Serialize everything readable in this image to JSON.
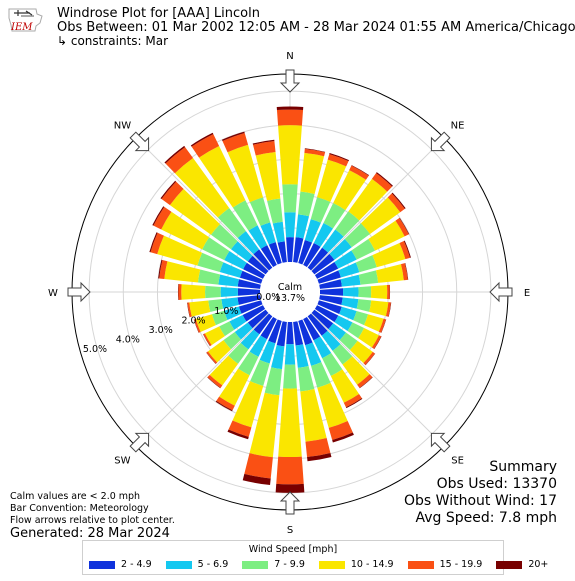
{
  "header": {
    "title_line1": "Windrose Plot for [AAA] Lincoln",
    "title_line2": "Obs Between: 01 Mar 2002 12:05 AM - 28 Mar 2024 01:55 AM America/Chicago",
    "title_line3": "↳ constraints: Mar",
    "logo_text": "IEM"
  },
  "calm": {
    "label": "Calm",
    "value": "13.7%"
  },
  "summary": {
    "heading": "Summary",
    "obs_used": "Obs Used: 13370",
    "obs_without_wind": "Obs Without Wind: 17",
    "avg_speed": "Avg Speed: 7.8 mph"
  },
  "notes": {
    "line1": "Calm values are < 2.0 mph",
    "line2": "Bar Convention: Meteorology",
    "line3": "Flow arrows relative to plot center."
  },
  "generated": "Generated: 28 Mar 2024",
  "legend": {
    "title": "Wind Speed [mph]",
    "items": [
      {
        "label": "2 - 4.9",
        "color": "#0f32dc"
      },
      {
        "label": "5 - 6.9",
        "color": "#14c8f0"
      },
      {
        "label": "7 - 9.9",
        "color": "#7dee82"
      },
      {
        "label": "10 - 14.9",
        "color": "#fae600"
      },
      {
        "label": "15 - 19.9",
        "color": "#fa5014"
      },
      {
        "label": "20+",
        "color": "#780000"
      }
    ]
  },
  "chart_data": {
    "type": "windrose",
    "convention": "meteorology",
    "directions_deg": [
      0,
      10,
      20,
      30,
      40,
      50,
      60,
      70,
      80,
      90,
      100,
      110,
      120,
      130,
      140,
      150,
      160,
      170,
      180,
      190,
      200,
      210,
      220,
      230,
      240,
      250,
      260,
      270,
      280,
      290,
      300,
      310,
      320,
      330,
      340,
      350
    ],
    "compass_labels": [
      "N",
      "NE",
      "E",
      "SE",
      "S",
      "SW",
      "W",
      "NW"
    ],
    "radial_ticks": [
      "0.0%",
      "1.0%",
      "2.0%",
      "3.0%",
      "4.0%",
      "5.0%"
    ],
    "radial_max": 5.5,
    "calm_percent": 13.7,
    "bins": [
      "2 - 4.9",
      "5 - 6.9",
      "7 - 9.9",
      "10 - 14.9",
      "15 - 19.9",
      "20+"
    ],
    "totals": [
      4.55,
      3.35,
      3.35,
      3.25,
      3.45,
      3.3,
      3.0,
      2.8,
      2.6,
      2.05,
      2.1,
      2.05,
      2.1,
      2.2,
      2.6,
      2.9,
      3.7,
      4.1,
      5.0,
      4.8,
      3.6,
      3.0,
      2.6,
      2.15,
      1.95,
      2.05,
      2.15,
      2.4,
      3.0,
      3.4,
      3.6,
      3.8,
      4.4,
      4.3,
      4.0,
      3.6
    ],
    "shares": [
      [
        0.16,
        0.16,
        0.18,
        0.38,
        0.1,
        0.02
      ],
      [
        0.22,
        0.2,
        0.2,
        0.34,
        0.035,
        0.005
      ],
      [
        0.21,
        0.19,
        0.2,
        0.34,
        0.05,
        0.01
      ],
      [
        0.22,
        0.2,
        0.2,
        0.33,
        0.045,
        0.005
      ],
      [
        0.21,
        0.19,
        0.19,
        0.34,
        0.06,
        0.01
      ],
      [
        0.22,
        0.19,
        0.2,
        0.33,
        0.05,
        0.01
      ],
      [
        0.23,
        0.2,
        0.2,
        0.32,
        0.045,
        0.005
      ],
      [
        0.24,
        0.2,
        0.19,
        0.31,
        0.05,
        0.01
      ],
      [
        0.25,
        0.21,
        0.2,
        0.29,
        0.045,
        0.005
      ],
      [
        0.33,
        0.22,
        0.18,
        0.23,
        0.035,
        0.005
      ],
      [
        0.32,
        0.22,
        0.18,
        0.24,
        0.035,
        0.005
      ],
      [
        0.34,
        0.22,
        0.17,
        0.23,
        0.035,
        0.005
      ],
      [
        0.33,
        0.22,
        0.18,
        0.23,
        0.035,
        0.005
      ],
      [
        0.31,
        0.21,
        0.19,
        0.25,
        0.035,
        0.005
      ],
      [
        0.27,
        0.21,
        0.19,
        0.28,
        0.045,
        0.005
      ],
      [
        0.24,
        0.2,
        0.2,
        0.3,
        0.05,
        0.01
      ],
      [
        0.2,
        0.17,
        0.18,
        0.33,
        0.1,
        0.02
      ],
      [
        0.17,
        0.16,
        0.17,
        0.36,
        0.11,
        0.03
      ],
      [
        0.13,
        0.12,
        0.14,
        0.4,
        0.16,
        0.05
      ],
      [
        0.15,
        0.14,
        0.16,
        0.38,
        0.13,
        0.04
      ],
      [
        0.19,
        0.17,
        0.19,
        0.35,
        0.08,
        0.02
      ],
      [
        0.22,
        0.19,
        0.2,
        0.33,
        0.05,
        0.01
      ],
      [
        0.25,
        0.21,
        0.2,
        0.3,
        0.035,
        0.005
      ],
      [
        0.3,
        0.22,
        0.19,
        0.26,
        0.025,
        0.005
      ],
      [
        0.34,
        0.22,
        0.17,
        0.24,
        0.025,
        0.005
      ],
      [
        0.33,
        0.22,
        0.18,
        0.24,
        0.025,
        0.005
      ],
      [
        0.31,
        0.22,
        0.18,
        0.26,
        0.025,
        0.005
      ],
      [
        0.27,
        0.21,
        0.19,
        0.29,
        0.035,
        0.005
      ],
      [
        0.22,
        0.19,
        0.2,
        0.33,
        0.05,
        0.01
      ],
      [
        0.19,
        0.18,
        0.2,
        0.36,
        0.06,
        0.01
      ],
      [
        0.18,
        0.17,
        0.2,
        0.37,
        0.07,
        0.01
      ],
      [
        0.17,
        0.16,
        0.19,
        0.39,
        0.08,
        0.01
      ],
      [
        0.15,
        0.15,
        0.19,
        0.41,
        0.09,
        0.01
      ],
      [
        0.15,
        0.15,
        0.19,
        0.41,
        0.09,
        0.01
      ],
      [
        0.16,
        0.15,
        0.19,
        0.4,
        0.09,
        0.01
      ],
      [
        0.17,
        0.16,
        0.19,
        0.38,
        0.09,
        0.01
      ]
    ],
    "grid": true
  }
}
